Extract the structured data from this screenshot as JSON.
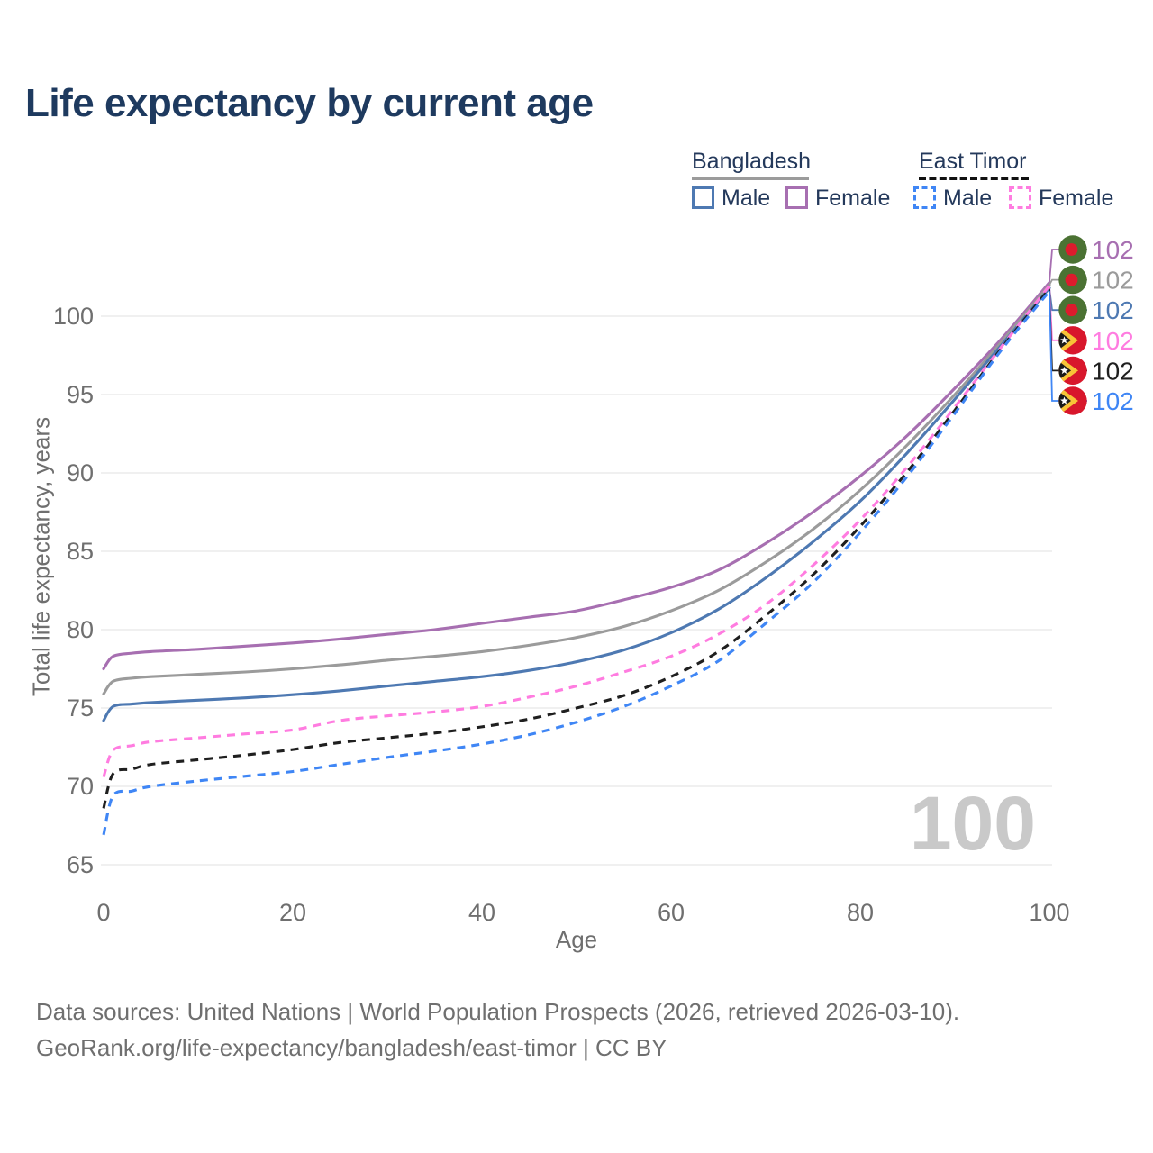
{
  "title": "Life expectancy by current age",
  "legend": {
    "groups": [
      {
        "label": "Bangladesh",
        "line_style": "solid",
        "underline_color": "#9b9b9b",
        "items": [
          {
            "label": "Male",
            "color": "#4e79b2"
          },
          {
            "label": "Female",
            "color": "#a76fb1"
          }
        ]
      },
      {
        "label": "East Timor",
        "line_style": "dashed",
        "underline_color": "#111111",
        "items": [
          {
            "label": "Male",
            "color": "#3f86f5"
          },
          {
            "label": "Female",
            "color": "#ff7ce0"
          }
        ]
      }
    ]
  },
  "chart_data": {
    "type": "line",
    "title": "Life expectancy by current age",
    "xlabel": "Age",
    "ylabel": "Total life expectancy, years",
    "xlim": [
      0,
      100
    ],
    "ylim": [
      65,
      103
    ],
    "xticks": [
      0,
      20,
      40,
      60,
      80,
      100
    ],
    "yticks": [
      65,
      70,
      75,
      80,
      85,
      90,
      95,
      100
    ],
    "grid": "horizontal-only",
    "legend_position": "top-right",
    "series": [
      {
        "name": "Bangladesh Female",
        "country": "Bangladesh",
        "sex": "Female",
        "color": "#a76fb1",
        "line_style": "solid",
        "flag": "bangladesh-flag",
        "end_label": "102",
        "points": [
          [
            0,
            77.5
          ],
          [
            1,
            78.3
          ],
          [
            3,
            78.5
          ],
          [
            5,
            78.6
          ],
          [
            10,
            78.75
          ],
          [
            15,
            78.95
          ],
          [
            20,
            79.15
          ],
          [
            25,
            79.4
          ],
          [
            30,
            79.7
          ],
          [
            35,
            80.0
          ],
          [
            40,
            80.4
          ],
          [
            45,
            80.8
          ],
          [
            50,
            81.2
          ],
          [
            55,
            81.9
          ],
          [
            60,
            82.7
          ],
          [
            65,
            83.8
          ],
          [
            70,
            85.5
          ],
          [
            75,
            87.5
          ],
          [
            80,
            89.8
          ],
          [
            85,
            92.4
          ],
          [
            90,
            95.4
          ],
          [
            95,
            98.6
          ],
          [
            100,
            102.15
          ]
        ]
      },
      {
        "name": "Bangladesh Both sexes",
        "country": "Bangladesh",
        "sex": "Both sexes",
        "color": "#9b9b9b",
        "line_style": "solid",
        "flag": "bangladesh-flag",
        "end_label": "102",
        "points": [
          [
            0,
            75.9
          ],
          [
            1,
            76.7
          ],
          [
            3,
            76.9
          ],
          [
            5,
            77.0
          ],
          [
            10,
            77.15
          ],
          [
            15,
            77.3
          ],
          [
            20,
            77.5
          ],
          [
            25,
            77.75
          ],
          [
            30,
            78.05
          ],
          [
            35,
            78.3
          ],
          [
            40,
            78.6
          ],
          [
            45,
            79.0
          ],
          [
            50,
            79.5
          ],
          [
            55,
            80.2
          ],
          [
            60,
            81.2
          ],
          [
            65,
            82.5
          ],
          [
            70,
            84.3
          ],
          [
            75,
            86.4
          ],
          [
            80,
            88.9
          ],
          [
            85,
            91.8
          ],
          [
            90,
            95.0
          ],
          [
            95,
            98.4
          ],
          [
            100,
            102.0
          ]
        ]
      },
      {
        "name": "Bangladesh Male",
        "country": "Bangladesh",
        "sex": "Male",
        "color": "#4e79b2",
        "line_style": "solid",
        "flag": "bangladesh-flag",
        "end_label": "102",
        "points": [
          [
            0,
            74.2
          ],
          [
            1,
            75.1
          ],
          [
            3,
            75.25
          ],
          [
            5,
            75.35
          ],
          [
            10,
            75.5
          ],
          [
            15,
            75.65
          ],
          [
            20,
            75.85
          ],
          [
            25,
            76.1
          ],
          [
            30,
            76.4
          ],
          [
            35,
            76.7
          ],
          [
            40,
            77.0
          ],
          [
            45,
            77.4
          ],
          [
            50,
            77.95
          ],
          [
            55,
            78.7
          ],
          [
            60,
            79.8
          ],
          [
            65,
            81.3
          ],
          [
            70,
            83.3
          ],
          [
            75,
            85.6
          ],
          [
            80,
            88.2
          ],
          [
            85,
            91.3
          ],
          [
            90,
            94.7
          ],
          [
            95,
            98.2
          ],
          [
            100,
            101.8
          ]
        ]
      },
      {
        "name": "East Timor Female",
        "country": "East Timor",
        "sex": "Female",
        "color": "#ff7ce0",
        "line_style": "dashed",
        "flag": "east-timor-flag",
        "end_label": "102",
        "points": [
          [
            0,
            70.6
          ],
          [
            1,
            72.3
          ],
          [
            3,
            72.6
          ],
          [
            5,
            72.85
          ],
          [
            10,
            73.1
          ],
          [
            15,
            73.35
          ],
          [
            20,
            73.6
          ],
          [
            25,
            74.2
          ],
          [
            30,
            74.5
          ],
          [
            35,
            74.75
          ],
          [
            40,
            75.1
          ],
          [
            45,
            75.7
          ],
          [
            50,
            76.4
          ],
          [
            55,
            77.3
          ],
          [
            60,
            78.3
          ],
          [
            65,
            79.7
          ],
          [
            70,
            81.6
          ],
          [
            75,
            84.1
          ],
          [
            80,
            87.0
          ],
          [
            85,
            90.4
          ],
          [
            90,
            94.2
          ],
          [
            95,
            98.1
          ],
          [
            100,
            101.95
          ]
        ]
      },
      {
        "name": "East Timor Both sexes",
        "country": "East Timor",
        "sex": "Both sexes",
        "color": "#1f1f1f",
        "line_style": "dashed",
        "flag": "east-timor-flag",
        "end_label": "102",
        "points": [
          [
            0,
            68.6
          ],
          [
            1,
            70.8
          ],
          [
            3,
            71.1
          ],
          [
            5,
            71.4
          ],
          [
            10,
            71.7
          ],
          [
            15,
            72.0
          ],
          [
            20,
            72.35
          ],
          [
            25,
            72.8
          ],
          [
            30,
            73.1
          ],
          [
            35,
            73.4
          ],
          [
            40,
            73.8
          ],
          [
            45,
            74.3
          ],
          [
            50,
            75.0
          ],
          [
            55,
            75.8
          ],
          [
            60,
            77.0
          ],
          [
            65,
            78.6
          ],
          [
            70,
            80.9
          ],
          [
            75,
            83.5
          ],
          [
            80,
            86.6
          ],
          [
            85,
            90.1
          ],
          [
            90,
            94.0
          ],
          [
            95,
            98.0
          ],
          [
            100,
            101.75
          ]
        ]
      },
      {
        "name": "East Timor Male",
        "country": "East Timor",
        "sex": "Male",
        "color": "#3f86f5",
        "line_style": "dashed",
        "flag": "east-timor-flag",
        "end_label": "102",
        "points": [
          [
            0,
            66.9
          ],
          [
            1,
            69.4
          ],
          [
            3,
            69.7
          ],
          [
            5,
            70.0
          ],
          [
            10,
            70.35
          ],
          [
            15,
            70.65
          ],
          [
            20,
            70.95
          ],
          [
            25,
            71.4
          ],
          [
            30,
            71.85
          ],
          [
            35,
            72.25
          ],
          [
            40,
            72.7
          ],
          [
            45,
            73.3
          ],
          [
            50,
            74.1
          ],
          [
            55,
            75.1
          ],
          [
            60,
            76.4
          ],
          [
            65,
            78.0
          ],
          [
            70,
            80.4
          ],
          [
            75,
            83.0
          ],
          [
            80,
            86.2
          ],
          [
            85,
            89.8
          ],
          [
            90,
            93.8
          ],
          [
            95,
            97.9
          ],
          [
            100,
            101.6
          ]
        ]
      }
    ]
  },
  "flags": {
    "bangladesh": {
      "field": "#4b7233",
      "disc": "#dd1b2d"
    },
    "east_timor": {
      "field": "#d8172c",
      "chevron": "#f8c437",
      "triangle": "#1a1a1a",
      "star": "#ffffff"
    }
  },
  "watermark": "100",
  "footer": {
    "line1": "Data sources: United Nations | World Population Prospects (2026, retrieved 2026-03-10).",
    "line2": "GeoRank.org/life-expectancy/bangladesh/east-timor | CC BY"
  }
}
